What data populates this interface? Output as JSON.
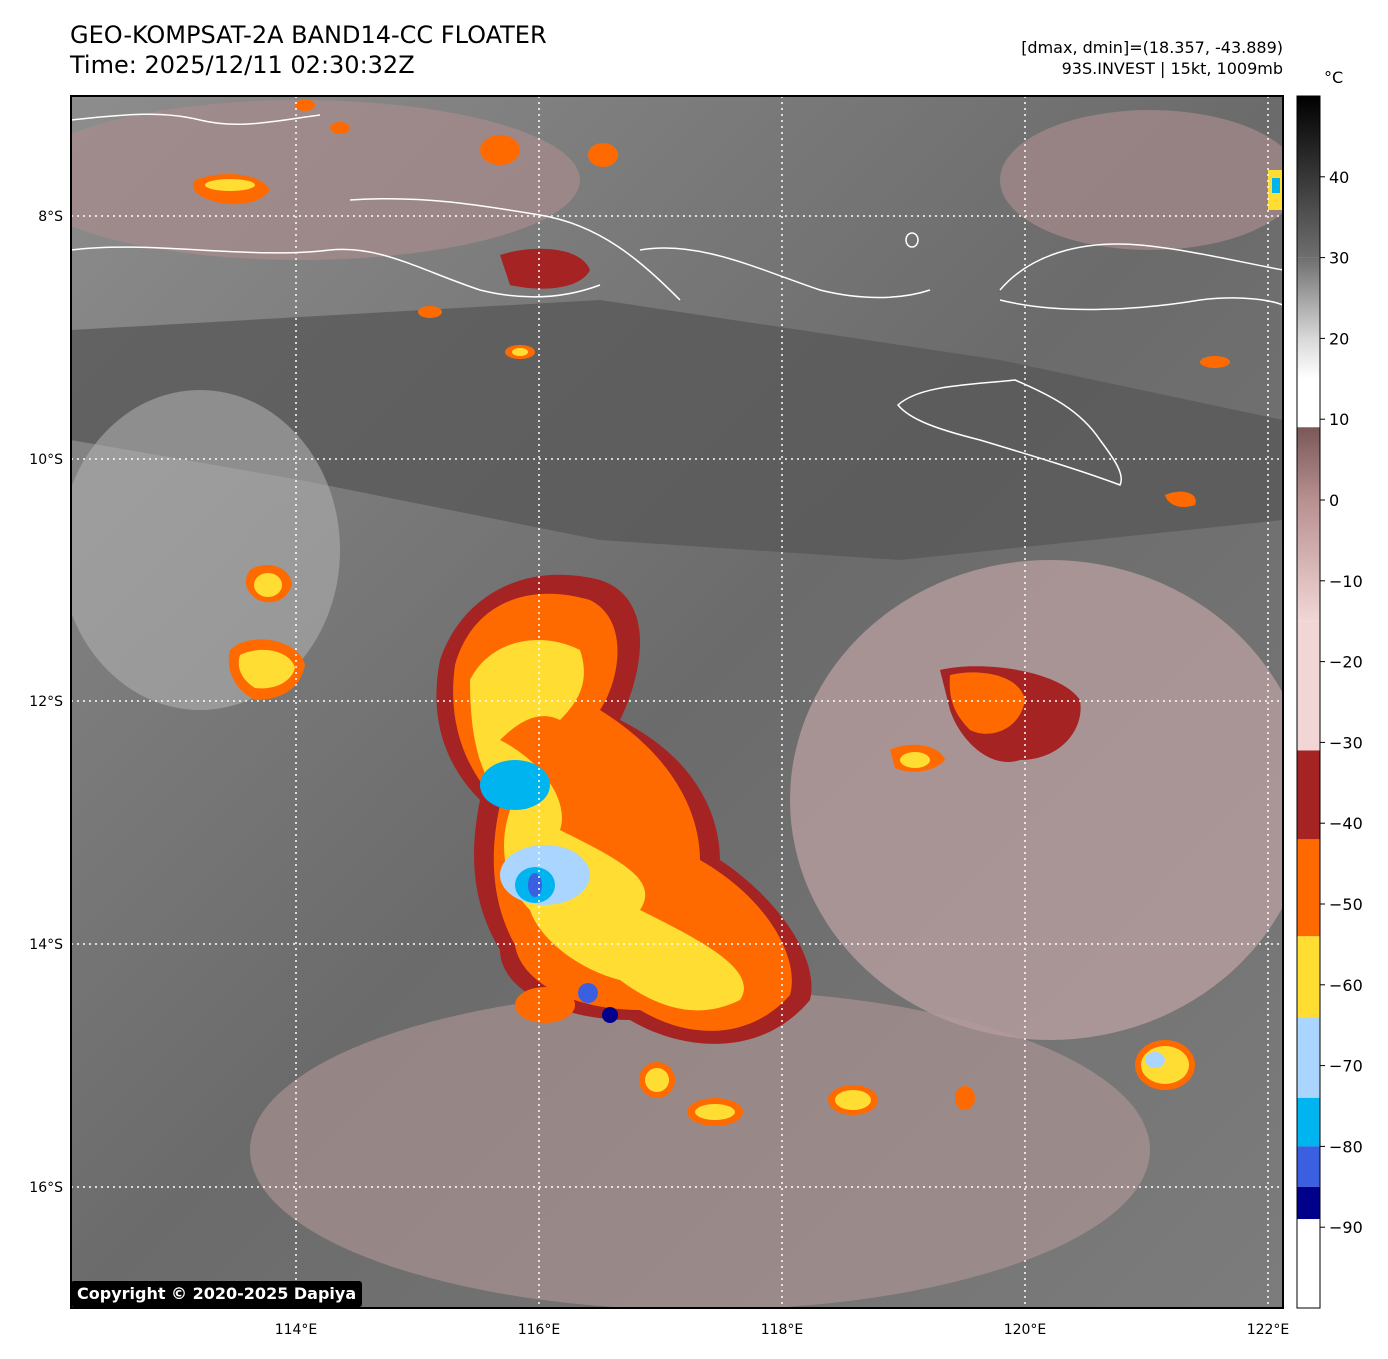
{
  "header": {
    "title_line1": "GEO-KOMPSAT-2A BAND14-CC FLOATER",
    "title_line2": "Time: 2025/12/11 02:30:32Z",
    "info_line1": "[dmax, dmin]=(18.357, -43.889)",
    "info_line2": "93S.INVEST | 15kt, 1009mb"
  },
  "colorbar": {
    "unit": "°C",
    "ticks": [
      "40",
      "30",
      "20",
      "10",
      "0",
      "−10",
      "−20",
      "−30",
      "−40",
      "−50",
      "−60",
      "−70",
      "−80",
      "−90"
    ],
    "segments": [
      {
        "color": "#000000"
      },
      {
        "color": "#6e6e6e"
      },
      {
        "color": "#d8d8d8"
      },
      {
        "color": "#ffffff"
      },
      {
        "color": "#7a5858"
      },
      {
        "color": "#b89090"
      },
      {
        "color": "#f2d6d6"
      },
      {
        "color": "#a52323"
      },
      {
        "color": "#ff6a00"
      },
      {
        "color": "#ffdd33"
      },
      {
        "color": "#a9d5ff"
      },
      {
        "color": "#00b4f0"
      },
      {
        "color": "#3a5fe0"
      },
      {
        "color": "#00008b"
      },
      {
        "color": "#ffffff"
      }
    ]
  },
  "map": {
    "lon_labels": [
      "114°E",
      "116°E",
      "118°E",
      "120°E",
      "122°E"
    ],
    "lat_labels": [
      "8°S",
      "10°S",
      "12°S",
      "14°S",
      "16°S"
    ],
    "copyright": "Copyright © 2020-2025 Dapiya"
  }
}
